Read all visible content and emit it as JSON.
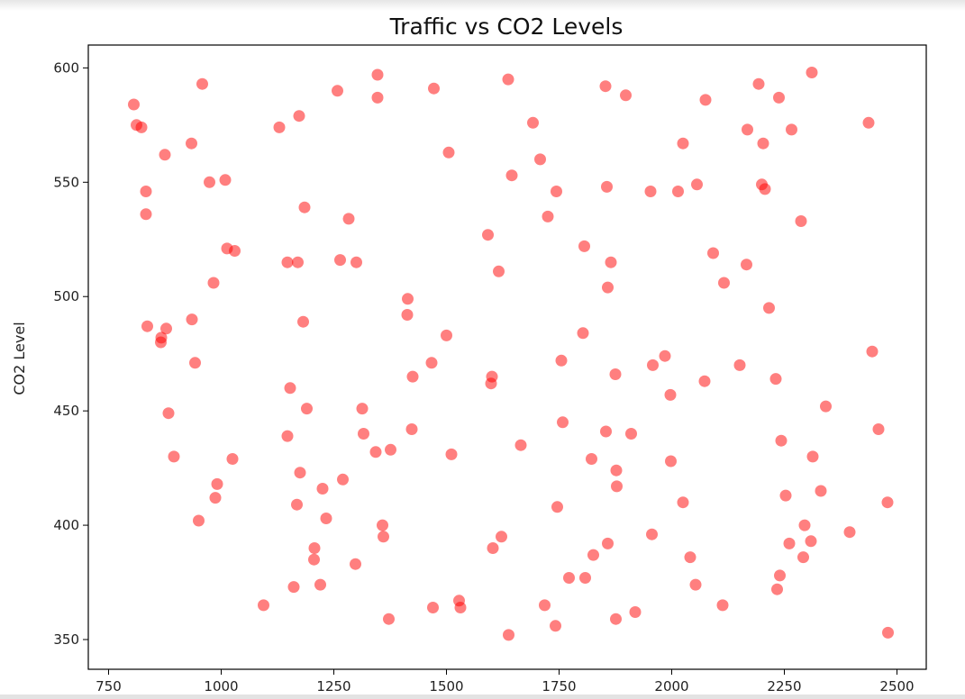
{
  "chart_data": {
    "type": "scatter",
    "title": "Traffic vs CO2 Levels",
    "xlabel": "",
    "ylabel": "CO2 Level",
    "xlim": [
      705,
      2565
    ],
    "ylim": [
      337,
      610
    ],
    "xticks": [
      750,
      1000,
      1250,
      1500,
      1750,
      2000,
      2250,
      2500
    ],
    "yticks": [
      350,
      400,
      450,
      500,
      550,
      600
    ],
    "grid": false,
    "marker_color": "#ff0000",
    "marker_alpha": 0.5,
    "points": [
      [
        806,
        584
      ],
      [
        812,
        575
      ],
      [
        823,
        574
      ],
      [
        833,
        546
      ],
      [
        833,
        536
      ],
      [
        836,
        487
      ],
      [
        867,
        482
      ],
      [
        866,
        480
      ],
      [
        878,
        486
      ],
      [
        875,
        562
      ],
      [
        883,
        449
      ],
      [
        895,
        430
      ],
      [
        934,
        567
      ],
      [
        935,
        490
      ],
      [
        942,
        471
      ],
      [
        950,
        402
      ],
      [
        958,
        593
      ],
      [
        974,
        550
      ],
      [
        983,
        506
      ],
      [
        987,
        412
      ],
      [
        991,
        418
      ],
      [
        1009,
        551
      ],
      [
        1013,
        521
      ],
      [
        1030,
        520
      ],
      [
        1025,
        429
      ],
      [
        1094,
        365
      ],
      [
        1129,
        574
      ],
      [
        1147,
        439
      ],
      [
        1147,
        515
      ],
      [
        1153,
        460
      ],
      [
        1161,
        373
      ],
      [
        1168,
        409
      ],
      [
        1170,
        515
      ],
      [
        1173,
        579
      ],
      [
        1175,
        423
      ],
      [
        1182,
        489
      ],
      [
        1185,
        539
      ],
      [
        1190,
        451
      ],
      [
        1207,
        390
      ],
      [
        1206,
        385
      ],
      [
        1220,
        374
      ],
      [
        1225,
        416
      ],
      [
        1233,
        403
      ],
      [
        1258,
        590
      ],
      [
        1264,
        516
      ],
      [
        1270,
        420
      ],
      [
        1283,
        534
      ],
      [
        1298,
        383
      ],
      [
        1300,
        515
      ],
      [
        1313,
        451
      ],
      [
        1316,
        440
      ],
      [
        1343,
        432
      ],
      [
        1347,
        597
      ],
      [
        1347,
        587
      ],
      [
        1358,
        400
      ],
      [
        1360,
        395
      ],
      [
        1372,
        359
      ],
      [
        1376,
        433
      ],
      [
        1414,
        499
      ],
      [
        1413,
        492
      ],
      [
        1423,
        442
      ],
      [
        1425,
        465
      ],
      [
        1467,
        471
      ],
      [
        1470,
        364
      ],
      [
        1472,
        591
      ],
      [
        1500,
        483
      ],
      [
        1505,
        563
      ],
      [
        1511,
        431
      ],
      [
        1528,
        367
      ],
      [
        1531,
        364
      ],
      [
        1592,
        527
      ],
      [
        1599,
        462
      ],
      [
        1601,
        465
      ],
      [
        1603,
        390
      ],
      [
        1616,
        511
      ],
      [
        1622,
        395
      ],
      [
        1637,
        595
      ],
      [
        1638,
        352
      ],
      [
        1645,
        553
      ],
      [
        1665,
        435
      ],
      [
        1692,
        576
      ],
      [
        1708,
        560
      ],
      [
        1718,
        365
      ],
      [
        1725,
        535
      ],
      [
        1742,
        356
      ],
      [
        1744,
        546
      ],
      [
        1746,
        408
      ],
      [
        1755,
        472
      ],
      [
        1758,
        445
      ],
      [
        1772,
        377
      ],
      [
        1803,
        484
      ],
      [
        1806,
        522
      ],
      [
        1808,
        377
      ],
      [
        1822,
        429
      ],
      [
        1826,
        387
      ],
      [
        1853,
        592
      ],
      [
        1854,
        441
      ],
      [
        1856,
        548
      ],
      [
        1858,
        504
      ],
      [
        1858,
        392
      ],
      [
        1865,
        515
      ],
      [
        1875,
        466
      ],
      [
        1876,
        359
      ],
      [
        1877,
        424
      ],
      [
        1878,
        417
      ],
      [
        1898,
        588
      ],
      [
        1910,
        440
      ],
      [
        1919,
        362
      ],
      [
        1953,
        546
      ],
      [
        1956,
        396
      ],
      [
        1958,
        470
      ],
      [
        1985,
        474
      ],
      [
        1997,
        457
      ],
      [
        1998,
        428
      ],
      [
        2014,
        546
      ],
      [
        2025,
        567
      ],
      [
        2025,
        410
      ],
      [
        2041,
        386
      ],
      [
        2053,
        374
      ],
      [
        2056,
        549
      ],
      [
        2073,
        463
      ],
      [
        2075,
        586
      ],
      [
        2092,
        519
      ],
      [
        2113,
        365
      ],
      [
        2116,
        506
      ],
      [
        2151,
        470
      ],
      [
        2166,
        514
      ],
      [
        2168,
        573
      ],
      [
        2193,
        593
      ],
      [
        2200,
        549
      ],
      [
        2203,
        567
      ],
      [
        2207,
        547
      ],
      [
        2216,
        495
      ],
      [
        2231,
        464
      ],
      [
        2234,
        372
      ],
      [
        2238,
        587
      ],
      [
        2240,
        378
      ],
      [
        2243,
        437
      ],
      [
        2253,
        413
      ],
      [
        2261,
        392
      ],
      [
        2266,
        573
      ],
      [
        2287,
        533
      ],
      [
        2292,
        386
      ],
      [
        2295,
        400
      ],
      [
        2309,
        393
      ],
      [
        2311,
        598
      ],
      [
        2313,
        430
      ],
      [
        2331,
        415
      ],
      [
        2342,
        452
      ],
      [
        2395,
        397
      ],
      [
        2437,
        576
      ],
      [
        2445,
        476
      ],
      [
        2459,
        442
      ],
      [
        2479,
        410
      ],
      [
        2480,
        353
      ]
    ]
  }
}
